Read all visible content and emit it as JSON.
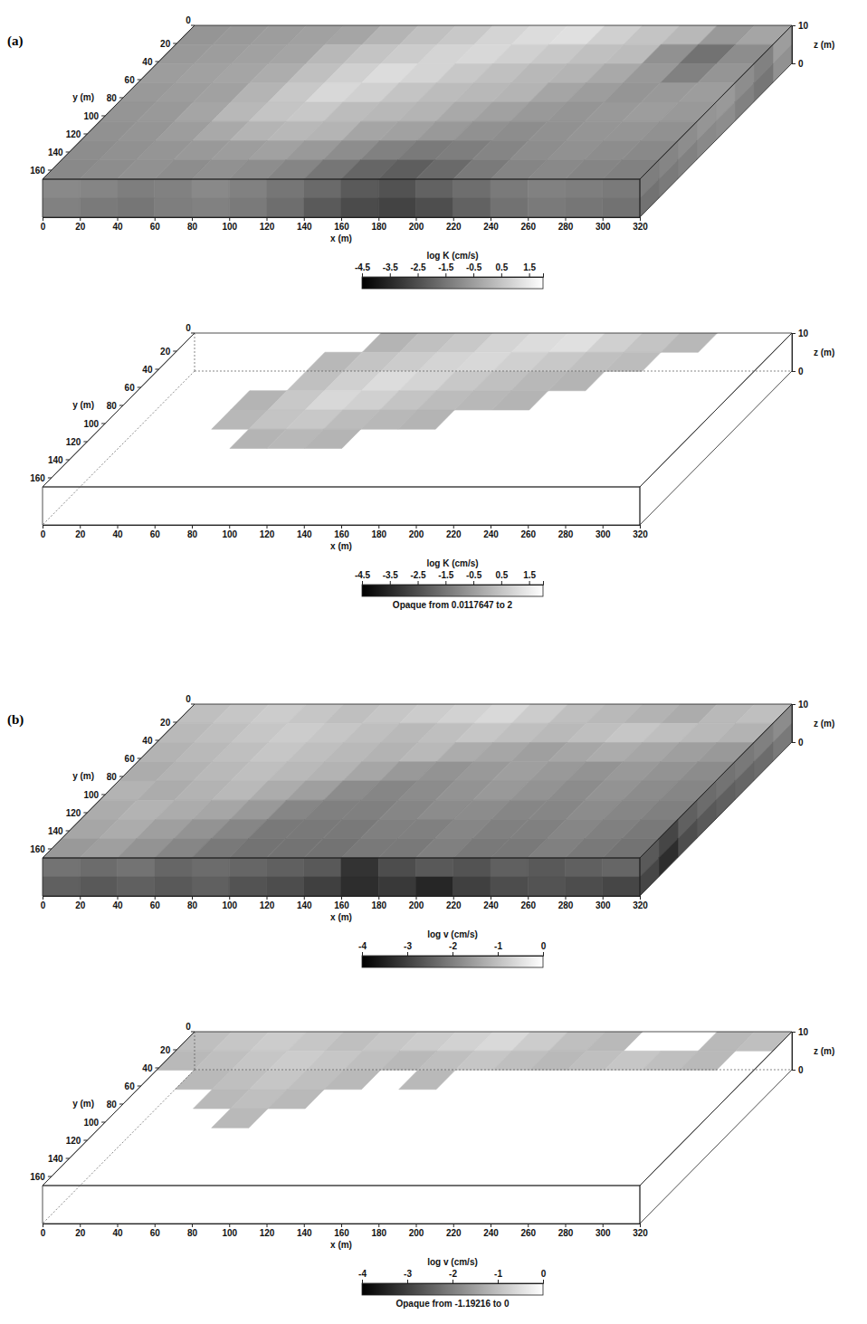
{
  "chart_data": [
    {
      "type": "heatmap",
      "panel": "(a)",
      "xlabel": "x (m)",
      "ylabel": "y (m)",
      "zlabel": "z (m)",
      "xlim": [
        0,
        320
      ],
      "xticks": [
        0,
        20,
        40,
        60,
        80,
        100,
        120,
        140,
        160,
        180,
        200,
        220,
        240,
        260,
        280,
        300,
        320
      ],
      "ylim": [
        0,
        170
      ],
      "yticks": [
        0,
        20,
        40,
        60,
        80,
        100,
        120,
        140,
        160
      ],
      "zlim": [
        0,
        10
      ],
      "zticks": [
        0,
        10
      ],
      "colorbar": {
        "label": "log K (cm/s)",
        "range": [
          -4.5,
          2
        ],
        "ticks": [
          -4.5,
          -3.5,
          -2.5,
          -1.5,
          -0.5,
          0.5,
          1.5
        ]
      },
      "annotation": "Opaque from 0.0117647 to 2",
      "opaque_range": [
        0.0117647,
        2
      ],
      "top_cells": [
        [
          -0.7,
          -0.6,
          -0.5,
          -0.4,
          -0.3,
          0.1,
          0.4,
          0.6,
          0.9,
          1.1,
          1.2,
          0.8,
          0.5,
          0.2,
          -0.6,
          -0.3
        ],
        [
          -0.6,
          -0.5,
          -0.4,
          -0.3,
          0.2,
          0.5,
          0.7,
          0.9,
          1.0,
          0.8,
          0.6,
          0.4,
          0.3,
          -0.8,
          -1.6,
          -0.9
        ],
        [
          -0.5,
          -0.4,
          -0.3,
          -0.1,
          0.4,
          0.8,
          1.1,
          0.9,
          0.6,
          0.4,
          0.2,
          0.1,
          -0.2,
          -0.6,
          -1.2,
          -0.7
        ],
        [
          -0.6,
          -0.5,
          -0.4,
          0.1,
          0.6,
          1.0,
          0.8,
          0.5,
          0.3,
          0.2,
          0.1,
          -0.3,
          -0.5,
          -0.7,
          -0.6,
          -0.5
        ],
        [
          -0.7,
          -0.6,
          -0.3,
          0.2,
          0.5,
          0.6,
          0.3,
          0.2,
          0.1,
          -0.2,
          -0.4,
          -0.6,
          -0.7,
          -0.6,
          -0.5,
          -0.6
        ],
        [
          -0.8,
          -0.7,
          -0.5,
          -0.2,
          0.1,
          0.2,
          0.1,
          -0.3,
          -0.4,
          -0.6,
          -0.8,
          -0.9,
          -0.8,
          -0.7,
          -0.7,
          -0.8
        ],
        [
          -0.9,
          -0.8,
          -0.7,
          -0.6,
          -0.5,
          -0.4,
          -0.6,
          -0.9,
          -1.2,
          -1.4,
          -1.3,
          -1.1,
          -0.9,
          -0.8,
          -0.9,
          -1.0
        ],
        [
          -1.0,
          -0.9,
          -0.8,
          -0.9,
          -0.8,
          -0.9,
          -1.1,
          -1.5,
          -1.9,
          -2.1,
          -1.8,
          -1.4,
          -1.1,
          -1.0,
          -1.1,
          -1.2
        ]
      ],
      "front_cells": [
        [
          -1.0,
          -1.1,
          -1.3,
          -1.2,
          -1.0,
          -1.2,
          -1.5,
          -1.8,
          -2.2,
          -2.4,
          -2.0,
          -1.7,
          -1.4,
          -1.2,
          -1.3,
          -1.4
        ],
        [
          -1.2,
          -1.4,
          -1.5,
          -1.3,
          -1.2,
          -1.4,
          -1.7,
          -2.2,
          -2.6,
          -2.8,
          -2.5,
          -2.0,
          -1.6,
          -1.4,
          -1.5,
          -1.6
        ]
      ],
      "side_cells": [
        [
          -0.5,
          -1.2,
          -0.9,
          -0.6,
          -0.7,
          -0.9,
          -1.1,
          -1.3
        ],
        [
          -0.8,
          -1.5,
          -1.2,
          -0.9,
          -1.0,
          -1.2,
          -1.4,
          -1.6
        ]
      ]
    },
    {
      "type": "heatmap",
      "panel": "(b)",
      "xlabel": "x (m)",
      "ylabel": "y (m)",
      "zlabel": "z (m)",
      "xlim": [
        0,
        320
      ],
      "xticks": [
        0,
        20,
        40,
        60,
        80,
        100,
        120,
        140,
        160,
        180,
        200,
        220,
        240,
        260,
        280,
        300,
        320
      ],
      "ylim": [
        0,
        170
      ],
      "yticks": [
        0,
        20,
        40,
        60,
        80,
        100,
        120,
        140,
        160
      ],
      "zlim": [
        0,
        10
      ],
      "zticks": [
        0,
        10
      ],
      "colorbar": {
        "label": "log v (cm/s)",
        "range": [
          -4,
          0
        ],
        "ticks": [
          -4,
          -3,
          -2,
          -1,
          0
        ]
      },
      "annotation": "Opaque from -1.19216 to 0",
      "opaque_range": [
        -1.19216,
        0
      ],
      "top_cells": [
        [
          -1.0,
          -0.9,
          -0.8,
          -0.9,
          -1.0,
          -0.9,
          -0.8,
          -0.7,
          -0.6,
          -0.8,
          -1.0,
          -1.1,
          -1.2,
          -1.3,
          -1.1,
          -1.0
        ],
        [
          -1.1,
          -1.0,
          -0.9,
          -0.8,
          -0.9,
          -1.0,
          -1.1,
          -1.0,
          -0.9,
          -1.0,
          -1.1,
          -1.0,
          -0.9,
          -1.0,
          -1.1,
          -1.2
        ],
        [
          -1.2,
          -1.1,
          -1.0,
          -0.9,
          -1.0,
          -1.1,
          -1.2,
          -1.1,
          -1.3,
          -1.4,
          -1.5,
          -1.4,
          -1.3,
          -1.4,
          -1.5,
          -1.6
        ],
        [
          -1.3,
          -1.2,
          -1.1,
          -1.0,
          -1.1,
          -1.2,
          -1.4,
          -1.6,
          -1.7,
          -1.6,
          -1.5,
          -1.6,
          -1.7,
          -1.6,
          -1.7,
          -1.8
        ],
        [
          -1.2,
          -1.3,
          -1.2,
          -1.1,
          -1.3,
          -1.5,
          -1.8,
          -1.9,
          -1.8,
          -1.7,
          -1.6,
          -1.7,
          -1.8,
          -1.7,
          -1.8,
          -1.9
        ],
        [
          -1.3,
          -1.2,
          -1.3,
          -1.4,
          -1.6,
          -1.9,
          -2.0,
          -2.0,
          -1.9,
          -1.8,
          -1.8,
          -1.9,
          -1.9,
          -1.8,
          -1.9,
          -2.0
        ],
        [
          -1.4,
          -1.3,
          -1.5,
          -1.7,
          -1.9,
          -2.1,
          -2.1,
          -2.1,
          -2.0,
          -2.0,
          -1.9,
          -2.0,
          -2.0,
          -1.9,
          -2.0,
          -2.1
        ],
        [
          -1.6,
          -1.5,
          -1.7,
          -1.9,
          -2.1,
          -2.2,
          -2.2,
          -2.2,
          -2.1,
          -2.1,
          -2.0,
          -2.1,
          -2.1,
          -2.0,
          -2.1,
          -2.2
        ]
      ],
      "front_cells": [
        [
          -2.2,
          -2.3,
          -2.2,
          -2.4,
          -2.3,
          -2.4,
          -2.5,
          -2.6,
          -3.2,
          -2.8,
          -2.6,
          -2.7,
          -2.5,
          -2.6,
          -2.5,
          -2.4
        ],
        [
          -2.5,
          -2.6,
          -2.5,
          -2.6,
          -2.5,
          -2.7,
          -2.8,
          -3.0,
          -3.3,
          -3.1,
          -3.4,
          -3.0,
          -2.8,
          -2.7,
          -2.8,
          -2.9
        ]
      ],
      "side_cells": [
        [
          -1.8,
          -2.0,
          -2.1,
          -2.2,
          -2.3,
          -2.5,
          -2.9,
          -2.6
        ],
        [
          -2.1,
          -2.3,
          -2.4,
          -2.5,
          -2.6,
          -2.8,
          -3.3,
          -2.9
        ]
      ]
    }
  ]
}
